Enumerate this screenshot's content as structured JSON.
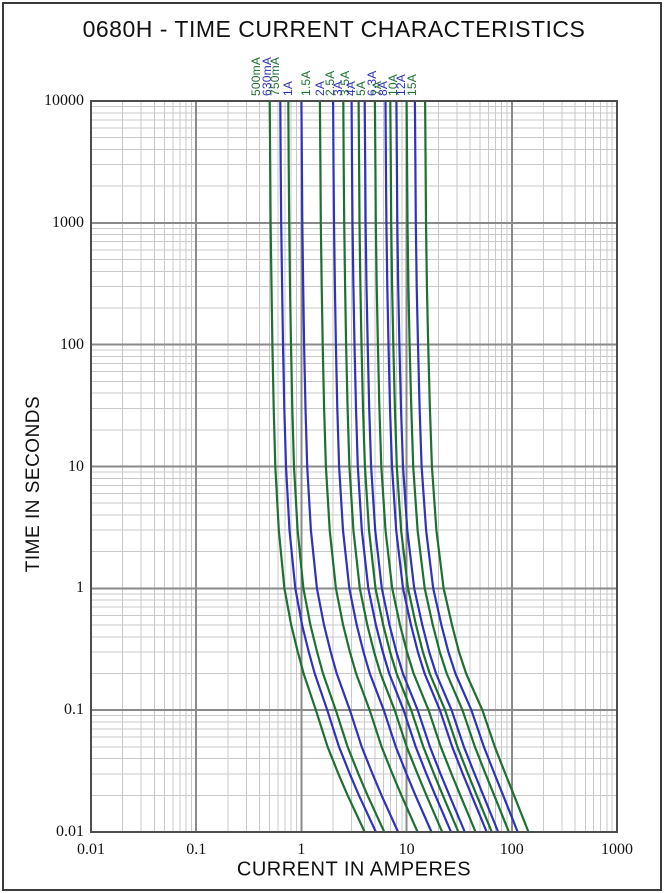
{
  "page": {
    "title": "0680H - TIME CURRENT CHARACTERISTICS"
  },
  "chart_data": {
    "type": "line",
    "title": "0680H - TIME CURRENT CHARACTERISTICS",
    "xlabel": "CURRENT IN AMPERES",
    "ylabel": "TIME IN SECONDS",
    "x_scale": "log",
    "y_scale": "log",
    "xlim": [
      0.01,
      1000
    ],
    "ylim": [
      0.01,
      10000
    ],
    "x_ticks": [
      "0.01",
      "0.1",
      "1",
      "10",
      "100",
      "1000"
    ],
    "y_ticks": [
      "10000",
      "1000",
      "100",
      "10",
      "1",
      "0.1",
      "0.01"
    ],
    "grid": "full log-log grid, minor lines light gray, decade lines dark gray",
    "legend_position": "labels rotated vertically above each curve top",
    "colors": {
      "green": "#1e7030",
      "blue": "#2f32bb",
      "grid_minor": "#c8c8c8",
      "grid_major": "#8a8a8a",
      "plot_border": "#4d4d4d"
    },
    "note": "Each series point i is (current = amps * multiple_i, time = times_seconds[i]). multiple_i interpolates between melt_multiple_small (0.5A fuse) and melt_multiple_large (15A fuse) by u = log10(amps/0.5)/log10(30).",
    "times_seconds": [
      10000,
      3000,
      1000,
      300,
      100,
      30,
      10,
      3,
      1,
      0.5,
      0.3,
      0.2,
      0.1,
      0.05,
      0.03,
      0.02,
      0.01
    ],
    "melt_multiple_small": [
      1.0,
      1.01,
      1.02,
      1.04,
      1.06,
      1.09,
      1.13,
      1.22,
      1.38,
      1.6,
      1.85,
      2.1,
      2.75,
      3.55,
      4.5,
      5.5,
      8.0
    ],
    "melt_multiple_large": [
      1.0,
      1.01,
      1.02,
      1.04,
      1.07,
      1.11,
      1.16,
      1.28,
      1.5,
      1.8,
      2.1,
      2.45,
      3.5,
      4.6,
      5.8,
      7.0,
      9.6
    ],
    "series": [
      {
        "label": "500mA",
        "amps": 0.5,
        "color": "#1e7030"
      },
      {
        "label": "630mA",
        "amps": 0.63,
        "color": "#2f32bb"
      },
      {
        "label": "750mA",
        "amps": 0.75,
        "color": "#1e7030"
      },
      {
        "label": "1A",
        "amps": 1,
        "color": "#2f32bb"
      },
      {
        "label": "1.5A",
        "amps": 1.5,
        "color": "#1e7030"
      },
      {
        "label": "2A",
        "amps": 2,
        "color": "#2f32bb"
      },
      {
        "label": "2.5A",
        "amps": 2.5,
        "color": "#1e7030"
      },
      {
        "label": "3A",
        "amps": 3,
        "color": "#2f32bb"
      },
      {
        "label": "3.5A",
        "amps": 3.5,
        "color": "#1e7030"
      },
      {
        "label": "4A",
        "amps": 4,
        "color": "#2f32bb"
      },
      {
        "label": "5A",
        "amps": 5,
        "color": "#1e7030"
      },
      {
        "label": "6.3A",
        "amps": 6.3,
        "color": "#2f32bb"
      },
      {
        "label": "7A",
        "amps": 7,
        "color": "#1e7030"
      },
      {
        "label": "8A",
        "amps": 8,
        "color": "#2f32bb"
      },
      {
        "label": "10A",
        "amps": 10,
        "color": "#1e7030"
      },
      {
        "label": "12A",
        "amps": 12,
        "color": "#2f32bb"
      },
      {
        "label": "15A",
        "amps": 15,
        "color": "#1e7030"
      }
    ]
  }
}
